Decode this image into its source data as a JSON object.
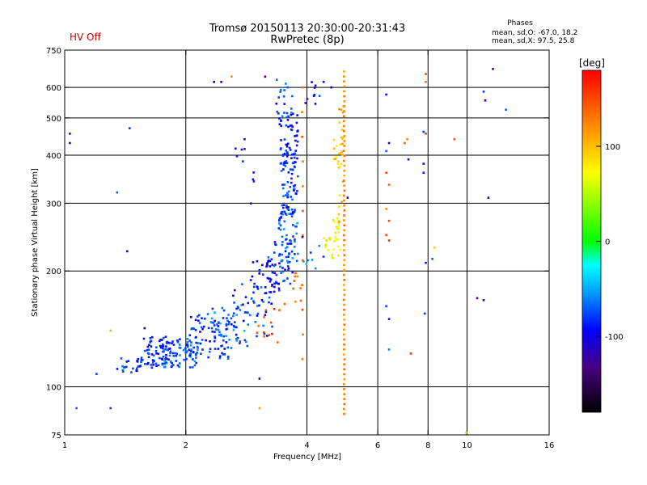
{
  "chart_data": {
    "type": "scatter",
    "title": "Tromsø 20150113 20:30:00-20:31:43",
    "subtitle": "RwPretec (8p)",
    "status_label": "HV Off",
    "status_color": "#cc0000",
    "xlabel": "Frequency [MHz]",
    "ylabel": "Stationary phase Virtual Height [km]",
    "xscale": "log",
    "yscale": "log",
    "xlim": [
      1,
      16
    ],
    "ylim": [
      75,
      750
    ],
    "x_ticks": [
      1,
      2,
      4,
      6,
      8,
      10,
      16
    ],
    "x_tick_labels": [
      "1",
      "2",
      "4",
      "6",
      "8",
      "10",
      "16"
    ],
    "y_ticks": [
      75,
      100,
      200,
      300,
      400,
      500,
      600,
      750
    ],
    "y_tick_labels": [
      "75",
      "100",
      "200",
      "300",
      "400",
      "500",
      "600",
      "750"
    ],
    "x_grid": [
      2,
      4,
      6,
      8,
      10
    ],
    "y_grid": [
      100,
      200,
      300,
      400,
      500,
      600
    ],
    "grid": true,
    "colorbar": {
      "label": "[deg]",
      "range": [
        -180,
        180
      ],
      "ticks": [
        100,
        0,
        -100
      ],
      "tick_labels": [
        "100",
        "0",
        "-100"
      ]
    },
    "stats": {
      "title": "Phases",
      "line1": "mean, sd,O: -67.0, 18.2",
      "line2": "mean, sd,X:  97.5, 25.8"
    },
    "clusters": [
      {
        "x": [
          1.35,
          1.55
        ],
        "y": [
          108,
          120
        ],
        "n": 22,
        "c": -80
      },
      {
        "x": [
          1.55,
          1.85
        ],
        "y": [
          112,
          135
        ],
        "n": 70,
        "c": -90
      },
      {
        "x": [
          1.75,
          2.15
        ],
        "y": [
          112,
          135
        ],
        "n": 80,
        "c": -70
      },
      {
        "x": [
          2.0,
          2.6
        ],
        "y": [
          118,
          155
        ],
        "n": 70,
        "c": -85
      },
      {
        "x": [
          2.3,
          2.9
        ],
        "y": [
          125,
          165
        ],
        "n": 45,
        "c": -65
      },
      {
        "x": [
          2.6,
          3.3
        ],
        "y": [
          135,
          185
        ],
        "n": 40,
        "c": -80
      },
      {
        "x": [
          2.9,
          3.45
        ],
        "y": [
          165,
          215
        ],
        "n": 40,
        "c": -95
      },
      {
        "x": [
          3.2,
          3.7
        ],
        "y": [
          185,
          240
        ],
        "n": 35,
        "c": -85
      },
      {
        "x": [
          3.4,
          3.8
        ],
        "y": [
          210,
          290
        ],
        "n": 55,
        "c": -70
      },
      {
        "x": [
          3.45,
          3.8
        ],
        "y": [
          280,
          420
        ],
        "n": 70,
        "c": -80
      },
      {
        "x": [
          3.4,
          3.8
        ],
        "y": [
          380,
          520
        ],
        "n": 45,
        "c": -90
      },
      {
        "x": [
          3.35,
          3.7
        ],
        "y": [
          500,
          630
        ],
        "n": 18,
        "c": -75
      },
      {
        "x": [
          3.0,
          3.45
        ],
        "y": [
          130,
          160
        ],
        "n": 12,
        "c": 150
      },
      {
        "x": [
          3.5,
          3.95
        ],
        "y": [
          160,
          200
        ],
        "n": 10,
        "c": 130
      },
      {
        "x": [
          4.4,
          4.85
        ],
        "y": [
          215,
          275
        ],
        "n": 30,
        "c": 70
      },
      {
        "x": [
          4.8,
          4.95
        ],
        "y": [
          250,
          600
        ],
        "n": 20,
        "c": 100
      },
      {
        "x": [
          4.65,
          4.9
        ],
        "y": [
          370,
          460
        ],
        "n": 14,
        "c": 90
      },
      {
        "x": [
          2.65,
          3.0
        ],
        "y": [
          290,
          420
        ],
        "n": 8,
        "c": -100
      },
      {
        "x": [
          3.9,
          4.3
        ],
        "y": [
          540,
          620
        ],
        "n": 8,
        "c": -110
      },
      {
        "x": [
          3.9,
          4.4
        ],
        "y": [
          200,
          235
        ],
        "n": 8,
        "c": -60
      }
    ],
    "vertical_lines": [
      {
        "x": 4.95,
        "y": [
          85,
          660
        ],
        "n": 70,
        "c": 120
      },
      {
        "x": 3.9,
        "y": [
          118,
          600
        ],
        "n": 12,
        "c": 140
      }
    ],
    "points": [
      {
        "x": 1.03,
        "y": 430,
        "c": -110
      },
      {
        "x": 1.03,
        "y": 455,
        "c": -90
      },
      {
        "x": 1.07,
        "y": 88,
        "c": -70
      },
      {
        "x": 1.3,
        "y": 88,
        "c": -80
      },
      {
        "x": 1.35,
        "y": 320,
        "c": -70
      },
      {
        "x": 1.43,
        "y": 225,
        "c": -130
      },
      {
        "x": 1.45,
        "y": 470,
        "c": -80
      },
      {
        "x": 1.3,
        "y": 140,
        "c": 30
      },
      {
        "x": 1.2,
        "y": 108,
        "c": -80
      },
      {
        "x": 1.58,
        "y": 142,
        "c": -110
      },
      {
        "x": 2.35,
        "y": 620,
        "c": -100
      },
      {
        "x": 2.45,
        "y": 620,
        "c": -120
      },
      {
        "x": 2.6,
        "y": 640,
        "c": 120
      },
      {
        "x": 2.8,
        "y": 440,
        "c": -110
      },
      {
        "x": 2.8,
        "y": 415,
        "c": -90
      },
      {
        "x": 3.15,
        "y": 640,
        "c": -140
      },
      {
        "x": 3.05,
        "y": 88,
        "c": 110
      },
      {
        "x": 3.05,
        "y": 105,
        "c": -130
      },
      {
        "x": 3.9,
        "y": 245,
        "c": -120
      },
      {
        "x": 4.3,
        "y": 570,
        "c": -70
      },
      {
        "x": 4.4,
        "y": 620,
        "c": -90
      },
      {
        "x": 4.6,
        "y": 600,
        "c": -120
      },
      {
        "x": 5.05,
        "y": 310,
        "c": -130
      },
      {
        "x": 6.3,
        "y": 575,
        "c": -90
      },
      {
        "x": 6.3,
        "y": 360,
        "c": 150
      },
      {
        "x": 6.4,
        "y": 335,
        "c": 140
      },
      {
        "x": 6.3,
        "y": 290,
        "c": 120
      },
      {
        "x": 6.4,
        "y": 270,
        "c": 150
      },
      {
        "x": 6.3,
        "y": 410,
        "c": -70
      },
      {
        "x": 6.4,
        "y": 430,
        "c": -110
      },
      {
        "x": 6.3,
        "y": 162,
        "c": -80
      },
      {
        "x": 6.4,
        "y": 150,
        "c": -90
      },
      {
        "x": 6.4,
        "y": 125,
        "c": -60
      },
      {
        "x": 6.3,
        "y": 248,
        "c": 150
      },
      {
        "x": 6.4,
        "y": 240,
        "c": 160
      },
      {
        "x": 7.0,
        "y": 430,
        "c": 140
      },
      {
        "x": 7.1,
        "y": 440,
        "c": 120
      },
      {
        "x": 7.15,
        "y": 390,
        "c": -90
      },
      {
        "x": 7.25,
        "y": 122,
        "c": 160
      },
      {
        "x": 7.8,
        "y": 460,
        "c": -80
      },
      {
        "x": 7.8,
        "y": 380,
        "c": -110
      },
      {
        "x": 7.8,
        "y": 360,
        "c": -90
      },
      {
        "x": 7.9,
        "y": 650,
        "c": 150
      },
      {
        "x": 7.9,
        "y": 620,
        "c": 130
      },
      {
        "x": 7.9,
        "y": 455,
        "c": 160
      },
      {
        "x": 7.9,
        "y": 210,
        "c": -90
      },
      {
        "x": 7.85,
        "y": 155,
        "c": -80
      },
      {
        "x": 8.2,
        "y": 215,
        "c": -70
      },
      {
        "x": 9.3,
        "y": 440,
        "c": 140
      },
      {
        "x": 9.95,
        "y": 76,
        "c": 50
      },
      {
        "x": 10.6,
        "y": 170,
        "c": -130
      },
      {
        "x": 11.0,
        "y": 168,
        "c": -110
      },
      {
        "x": 11.0,
        "y": 585,
        "c": -80
      },
      {
        "x": 11.1,
        "y": 555,
        "c": -110
      },
      {
        "x": 11.3,
        "y": 310,
        "c": -100
      },
      {
        "x": 11.6,
        "y": 670,
        "c": -130
      },
      {
        "x": 12.5,
        "y": 525,
        "c": -70
      },
      {
        "x": 8.3,
        "y": 230,
        "c": 90
      }
    ]
  }
}
